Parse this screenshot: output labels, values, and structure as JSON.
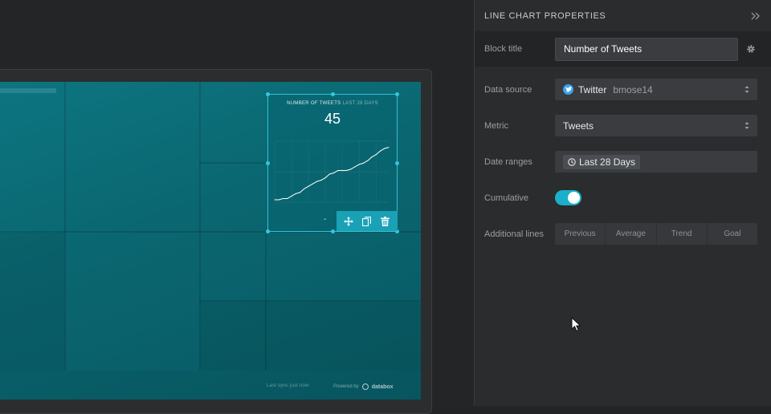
{
  "panel": {
    "title": "LINE CHART PROPERTIES",
    "block_title_label": "Block title",
    "block_title_value": "Number of Tweets",
    "data_source_label": "Data source",
    "data_source_name": "Twitter",
    "data_source_account": "bmose14",
    "metric_label": "Metric",
    "metric_value": "Tweets",
    "date_ranges_label": "Date ranges",
    "date_range_value": "Last 28 Days",
    "cumulative_label": "Cumulative",
    "cumulative_on": true,
    "additional_lines_label": "Additional lines",
    "additional_lines": [
      "Previous",
      "Average",
      "Trend",
      "Goal"
    ]
  },
  "widget": {
    "title": "NUMBER OF TWEETS",
    "subtitle": "LAST 28 DAYS",
    "value": "45"
  },
  "chart_data": {
    "type": "line",
    "x": [
      1,
      2,
      3,
      4,
      5,
      6,
      7,
      8,
      9,
      10,
      11,
      12,
      13,
      14,
      15,
      16,
      17,
      18,
      19,
      20,
      21,
      22,
      23,
      24,
      25,
      26,
      27,
      28
    ],
    "values": [
      2,
      2,
      3,
      3,
      5,
      7,
      8,
      11,
      13,
      15,
      17,
      18,
      20,
      23,
      24,
      26,
      26,
      26,
      27,
      29,
      31,
      32,
      34,
      37,
      39,
      42,
      44,
      45
    ],
    "ylim": [
      0,
      50
    ],
    "grid": true
  },
  "footer": {
    "status": "Last sync just now",
    "powered_by": "Powered by",
    "brand": "databox"
  },
  "colors": {
    "accent": "#1ab0cc",
    "panel_bg": "#2b2c2e",
    "dashboard_bg": "#0a6670"
  }
}
